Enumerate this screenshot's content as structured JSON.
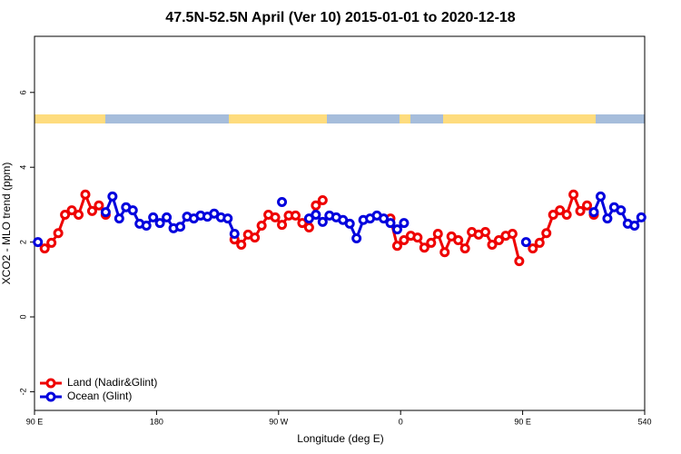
{
  "chart_data": {
    "type": "line",
    "title": "47.5N-52.5N April (Ver 10)   2015-01-01 to 2020-12-18",
    "x_label": "Longitude (deg E)",
    "y_label": "XCO2 - MLO trend (ppm)",
    "x": [
      92.5,
      97.5,
      102.5,
      107.5,
      112.5,
      117.5,
      122.5,
      127.5,
      132.5,
      137.5,
      142.5,
      147.5,
      152.5,
      157.5,
      162.5,
      167.5,
      172.5,
      177.5,
      182.5,
      187.5,
      192.5,
      197.5,
      202.5,
      207.5,
      212.5,
      217.5,
      222.5,
      227.5,
      232.5,
      237.5,
      242.5,
      247.5,
      252.5,
      257.5,
      262.5,
      267.5,
      272.5,
      277.5,
      282.5,
      287.5,
      292.5,
      297.5,
      302.5,
      307.5,
      312.5,
      317.5,
      322.5,
      327.5,
      332.5,
      337.5,
      342.5,
      347.5,
      352.5,
      357.5,
      362.5,
      367.5,
      372.5,
      377.5,
      382.5,
      387.5,
      392.5,
      397.5,
      402.5,
      407.5,
      412.5,
      417.5,
      422.5,
      427.5,
      432.5,
      437.5,
      442.5,
      447.5,
      452.5,
      457.5,
      462.5,
      467.5,
      472.5,
      477.5,
      482.5,
      487.5,
      492.5,
      497.5,
      502.5,
      507.5,
      512.5,
      517.5,
      522.5,
      527.5,
      532.5,
      537.5
    ],
    "series": [
      {
        "name": "Land (Nadir&Glint)",
        "color": "#ee0000",
        "values": [
          null,
          1.83,
          1.98,
          2.24,
          2.73,
          2.85,
          2.73,
          3.27,
          2.83,
          2.98,
          2.73,
          null,
          null,
          null,
          null,
          null,
          null,
          null,
          null,
          null,
          null,
          null,
          null,
          null,
          null,
          null,
          null,
          null,
          null,
          2.07,
          1.93,
          2.2,
          2.12,
          2.44,
          2.73,
          2.66,
          2.46,
          2.71,
          2.71,
          2.51,
          2.39,
          2.98,
          3.12,
          null,
          null,
          null,
          null,
          null,
          null,
          null,
          null,
          null,
          2.63,
          1.9,
          2.05,
          2.17,
          2.12,
          1.85,
          1.98,
          2.22,
          1.73,
          2.15,
          2.05,
          1.83,
          2.27,
          2.2,
          2.27,
          1.93,
          2.05,
          2.17,
          2.22,
          1.49,
          null,
          1.83,
          1.98,
          2.24,
          2.73,
          2.85,
          2.73,
          3.27,
          2.83,
          2.98,
          2.73,
          null,
          null,
          null,
          null,
          null,
          null,
          null
        ]
      },
      {
        "name": "Ocean (Glint)",
        "color": "#0000dd",
        "values": [
          2.0,
          null,
          null,
          null,
          null,
          null,
          null,
          null,
          null,
          null,
          2.8,
          3.22,
          2.63,
          2.93,
          2.85,
          2.49,
          2.44,
          2.66,
          2.51,
          2.66,
          2.37,
          2.41,
          2.68,
          2.63,
          2.71,
          2.68,
          2.76,
          2.66,
          2.63,
          2.22,
          null,
          null,
          null,
          null,
          null,
          null,
          3.07,
          null,
          null,
          null,
          2.63,
          2.73,
          2.54,
          2.71,
          2.66,
          2.59,
          2.49,
          2.1,
          2.59,
          2.63,
          2.71,
          2.63,
          2.51,
          2.34,
          2.51,
          null,
          null,
          null,
          null,
          null,
          null,
          null,
          null,
          null,
          null,
          null,
          null,
          null,
          null,
          null,
          null,
          null,
          2.0,
          null,
          null,
          null,
          null,
          null,
          null,
          null,
          null,
          null,
          2.8,
          3.22,
          2.63,
          2.93,
          2.85,
          2.49,
          2.44,
          2.66
        ]
      }
    ],
    "xlim": [
      90,
      540
    ],
    "xticks": [
      {
        "value": 90,
        "label": "90 E"
      },
      180,
      {
        "value": 270,
        "label": "90 W"
      },
      {
        "value": 360,
        "label": "0"
      },
      {
        "value": 450,
        "label": "90 E"
      },
      540
    ],
    "ylim": [
      -2.5,
      7.5
    ],
    "yticks": [
      -2,
      0,
      2,
      4,
      6
    ],
    "legend": "bottom-left"
  }
}
